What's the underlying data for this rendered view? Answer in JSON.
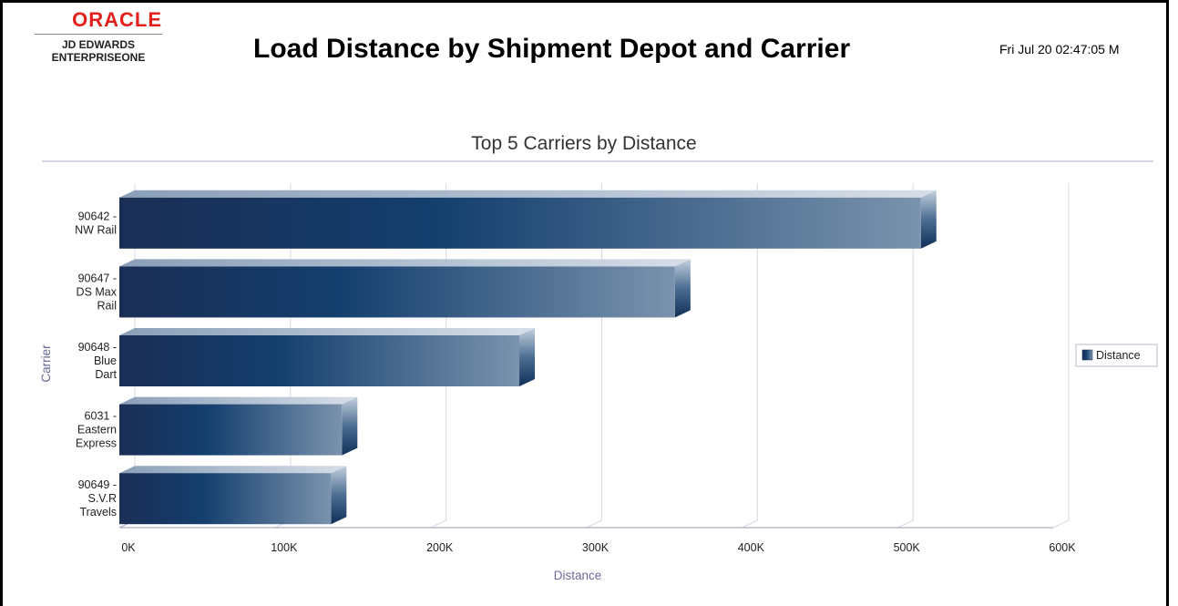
{
  "header": {
    "logo_brand": "ORACLE",
    "logo_line1": "JD EDWARDS",
    "logo_line2": "ENTERPRISEONE",
    "title": "Load Distance by Shipment Depot and Carrier",
    "timestamp": "Fri Jul 20 02:47:05 M"
  },
  "colors": {
    "bar_dark": "#1a2e55",
    "bar_mid": "#143f6e",
    "bar_light": "#7a93ae",
    "axis_text": "#6a6a9a",
    "grid": "#d8d8e4",
    "logo_red": "#e4201c"
  },
  "chart_data": {
    "type": "bar",
    "orientation": "horizontal",
    "title": "Top 5 Carriers by Distance",
    "xlabel": "Distance",
    "ylabel": "Carrier",
    "categories": [
      [
        "90642 -",
        "NW Rail"
      ],
      [
        "90647 -",
        "DS Max",
        "Rail"
      ],
      [
        "90648 -",
        "Blue",
        "Dart"
      ],
      [
        "6031 -",
        "Eastern",
        "Express"
      ],
      [
        "90649 -",
        "S.V.R",
        "Travels"
      ]
    ],
    "series": [
      {
        "name": "Distance",
        "values": [
          515000,
          357000,
          257000,
          143000,
          136000
        ]
      }
    ],
    "xlim": [
      0,
      600000
    ],
    "x_ticks": [
      0,
      100000,
      200000,
      300000,
      400000,
      500000,
      600000
    ],
    "x_tick_labels": [
      "0K",
      "100K",
      "200K",
      "300K",
      "400K",
      "500K",
      "600K"
    ],
    "grid": true,
    "legend": {
      "position": "right",
      "entries": [
        "Distance"
      ]
    }
  }
}
